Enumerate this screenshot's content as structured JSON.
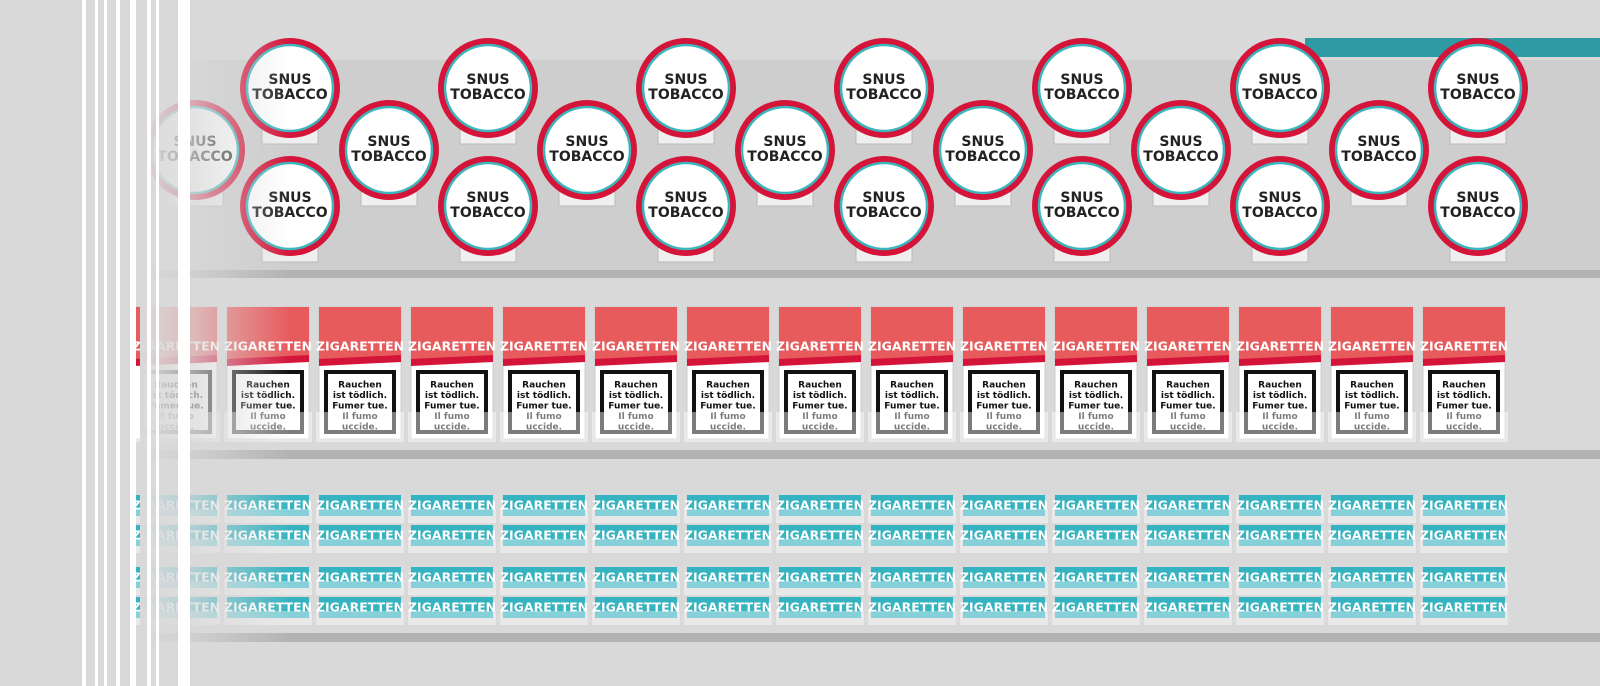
{
  "snus_label": [
    "SNUS",
    "TOBACCO"
  ],
  "pack_brand": "ZIGARETTEN",
  "pack_warning": [
    "Rauchen",
    "ist tödlich.",
    "Fumer tue.",
    "Il fumo",
    "uccide."
  ]
}
